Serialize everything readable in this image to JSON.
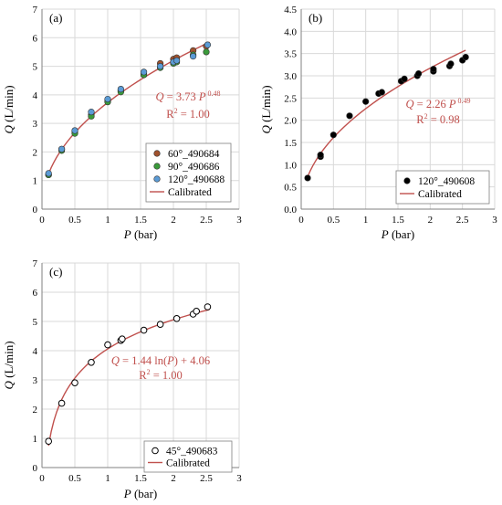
{
  "chart_data": [
    {
      "type": "scatter",
      "panel_label": "(a)",
      "xlabel_var": "P",
      "xlabel_unit": " (bar)",
      "ylabel_var": "Q",
      "ylabel_unit": " (L/min)",
      "xlim": [
        0,
        3
      ],
      "ylim": [
        0,
        7
      ],
      "xticks": [
        "0",
        "0.5",
        "1",
        "1.5",
        "2",
        "2.5",
        "3"
      ],
      "yticks": [
        "0",
        "1",
        "2",
        "3",
        "4",
        "5",
        "6",
        "7"
      ],
      "grid": true,
      "legend_position": "bottom-right",
      "equation": {
        "q": "Q",
        "mid": " = 3.73 ",
        "p": "P",
        "exp": "0.48"
      },
      "r2": {
        "pre": "R",
        "sup": "2",
        "post": " = 1.00"
      },
      "fit": {
        "model": "power",
        "a": 3.73,
        "b": 0.48,
        "x_range": [
          0.1,
          2.55
        ],
        "color": "#c0504d"
      },
      "series": [
        {
          "name": "60°_490684",
          "marker": "filled",
          "fill": "#a0522d",
          "x": [
            0.1,
            0.3,
            0.5,
            0.75,
            1.0,
            1.2,
            1.55,
            1.8,
            2.0,
            2.05,
            2.3,
            2.5
          ],
          "y": [
            1.2,
            2.1,
            2.7,
            3.3,
            3.8,
            4.15,
            4.7,
            5.1,
            5.25,
            5.3,
            5.55,
            5.7
          ]
        },
        {
          "name": "90°_490686",
          "marker": "filled",
          "fill": "#3a9a3a",
          "x": [
            0.1,
            0.3,
            0.5,
            0.75,
            1.0,
            1.2,
            1.55,
            1.8,
            2.0,
            2.05,
            2.3,
            2.5
          ],
          "y": [
            1.2,
            2.05,
            2.65,
            3.25,
            3.75,
            4.1,
            4.7,
            4.95,
            5.1,
            5.15,
            5.4,
            5.5
          ]
        },
        {
          "name": "120°_490688",
          "marker": "filled",
          "fill": "#5b9bd5",
          "x": [
            0.1,
            0.3,
            0.5,
            0.75,
            1.0,
            1.2,
            1.55,
            1.8,
            2.0,
            2.05,
            2.3,
            2.52
          ],
          "y": [
            1.25,
            2.1,
            2.75,
            3.4,
            3.85,
            4.2,
            4.8,
            5.0,
            5.15,
            5.2,
            5.35,
            5.75
          ]
        }
      ],
      "fit_name": "Calibrated"
    },
    {
      "type": "scatter",
      "panel_label": "(b)",
      "xlabel_var": "P",
      "xlabel_unit": " (bar)",
      "ylabel_var": "Q",
      "ylabel_unit": " (L/min)",
      "xlim": [
        0,
        3
      ],
      "ylim": [
        0,
        4.5
      ],
      "xticks": [
        "0",
        "0.5",
        "1",
        "1.5",
        "2",
        "2.5",
        "3"
      ],
      "yticks": [
        "0.0",
        "0.5",
        "1.0",
        "1.5",
        "2.0",
        "2.5",
        "3.0",
        "3.5",
        "4.0",
        "4.5"
      ],
      "grid": true,
      "legend_position": "bottom-right",
      "equation": {
        "q": "Q",
        "mid": " = 2.26 ",
        "p": "P",
        "exp": "0.49"
      },
      "r2": {
        "pre": "R",
        "sup": "2",
        "post": " = 0.98"
      },
      "fit": {
        "model": "power",
        "a": 2.26,
        "b": 0.49,
        "x_range": [
          0.1,
          2.55
        ],
        "color": "#c0504d"
      },
      "series": [
        {
          "name": "120°_490608",
          "marker": "filled",
          "fill": "#000000",
          "x": [
            0.1,
            0.3,
            0.3,
            0.5,
            0.75,
            1.0,
            1.2,
            1.25,
            1.55,
            1.6,
            1.8,
            1.82,
            2.05,
            2.05,
            2.3,
            2.32,
            2.5,
            2.55
          ],
          "y": [
            0.7,
            1.18,
            1.22,
            1.67,
            2.1,
            2.42,
            2.6,
            2.63,
            2.88,
            2.93,
            3.0,
            3.05,
            3.1,
            3.15,
            3.22,
            3.27,
            3.35,
            3.42
          ]
        }
      ],
      "fit_name": "Calibrated"
    },
    {
      "type": "scatter",
      "panel_label": "(c)",
      "xlabel_var": "P",
      "xlabel_unit": " (bar)",
      "ylabel_var": "Q",
      "ylabel_unit": " (L/min)",
      "xlim": [
        0,
        3
      ],
      "ylim": [
        0,
        7
      ],
      "xticks": [
        "0",
        "0.5",
        "1",
        "1.5",
        "2",
        "2.5",
        "3"
      ],
      "yticks": [
        "0",
        "1",
        "2",
        "3",
        "4",
        "5",
        "6",
        "7"
      ],
      "grid": true,
      "legend_position": "bottom-right",
      "equation_text": {
        "q": "Q",
        "mid": " = 1.44 ln(",
        "p": "P",
        "tail": ") + 4.06"
      },
      "r2": {
        "pre": "R",
        "sup": "2",
        "post": " = 1.00"
      },
      "fit": {
        "model": "log",
        "a": 1.44,
        "b": 4.06,
        "x_range": [
          0.1,
          2.55
        ],
        "color": "#c0504d"
      },
      "series": [
        {
          "name": "45°_490683",
          "marker": "open",
          "fill": "#ffffff",
          "x": [
            0.1,
            0.3,
            0.5,
            0.75,
            1.0,
            1.2,
            1.22,
            1.55,
            1.8,
            2.05,
            2.3,
            2.35,
            2.52
          ],
          "y": [
            0.9,
            2.2,
            2.9,
            3.6,
            4.2,
            4.35,
            4.4,
            4.7,
            4.9,
            5.1,
            5.25,
            5.35,
            5.5
          ]
        }
      ],
      "fit_name": "Calibrated"
    }
  ]
}
